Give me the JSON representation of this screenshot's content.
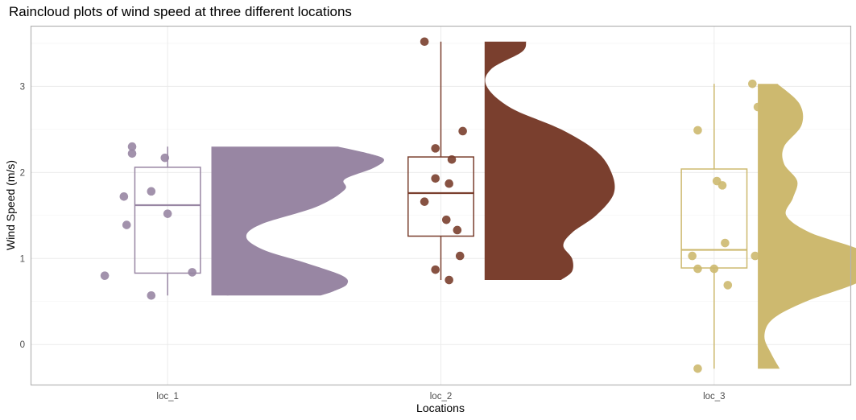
{
  "chart_data": {
    "type": "raincloud",
    "title": "Raincloud plots of wind speed at three different locations",
    "xlabel": "Locations",
    "ylabel": "Wind Speed (m/s)",
    "categories": [
      "loc_1",
      "loc_2",
      "loc_3"
    ],
    "yticks": [
      0,
      1,
      2,
      3
    ],
    "ylim": [
      -0.47,
      3.7
    ],
    "grid": true,
    "series": [
      {
        "category": "loc_1",
        "color": "#9886a3",
        "points": [
          {
            "offset": -0.13,
            "y": 2.3
          },
          {
            "offset": -0.13,
            "y": 2.22
          },
          {
            "offset": -0.01,
            "y": 2.17
          },
          {
            "offset": 0.23,
            "y": 2.03
          },
          {
            "offset": -0.06,
            "y": 1.78
          },
          {
            "offset": -0.16,
            "y": 1.72
          },
          {
            "offset": 0.0,
            "y": 1.52
          },
          {
            "offset": -0.15,
            "y": 1.39
          },
          {
            "offset": 0.09,
            "y": 0.84
          },
          {
            "offset": -0.23,
            "y": 0.8
          },
          {
            "offset": 0.22,
            "y": 0.62
          },
          {
            "offset": -0.06,
            "y": 0.57
          }
        ],
        "box": {
          "min": 0.57,
          "q1": 0.83,
          "median": 1.62,
          "q3": 2.06,
          "max": 2.3
        },
        "density": [
          {
            "y": 0.57,
            "w": 0.5
          },
          {
            "y": 0.62,
            "w": 0.56
          },
          {
            "y": 0.7,
            "w": 0.62
          },
          {
            "y": 0.8,
            "w": 0.6
          },
          {
            "y": 0.95,
            "w": 0.43
          },
          {
            "y": 1.1,
            "w": 0.24
          },
          {
            "y": 1.25,
            "w": 0.16
          },
          {
            "y": 1.4,
            "w": 0.23
          },
          {
            "y": 1.6,
            "w": 0.48
          },
          {
            "y": 1.8,
            "w": 0.61
          },
          {
            "y": 1.92,
            "w": 0.61
          },
          {
            "y": 2.05,
            "w": 0.74
          },
          {
            "y": 2.15,
            "w": 0.79
          },
          {
            "y": 2.22,
            "w": 0.72
          },
          {
            "y": 2.3,
            "w": 0.58
          }
        ]
      },
      {
        "category": "loc_2",
        "color": "#7a3f2e",
        "points": [
          {
            "offset": -0.06,
            "y": 3.52
          },
          {
            "offset": 0.08,
            "y": 2.48
          },
          {
            "offset": -0.02,
            "y": 2.28
          },
          {
            "offset": 0.04,
            "y": 2.15
          },
          {
            "offset": -0.02,
            "y": 1.93
          },
          {
            "offset": 0.03,
            "y": 1.87
          },
          {
            "offset": -0.06,
            "y": 1.66
          },
          {
            "offset": 0.02,
            "y": 1.45
          },
          {
            "offset": 0.06,
            "y": 1.33
          },
          {
            "offset": 0.07,
            "y": 1.03
          },
          {
            "offset": -0.02,
            "y": 0.87
          },
          {
            "offset": 0.03,
            "y": 0.75
          }
        ],
        "box": {
          "min": 0.75,
          "q1": 1.26,
          "median": 1.76,
          "q3": 2.18,
          "max": 3.52
        },
        "density": [
          {
            "y": 0.75,
            "w": 0.35
          },
          {
            "y": 0.85,
            "w": 0.4
          },
          {
            "y": 1.0,
            "w": 0.4
          },
          {
            "y": 1.15,
            "w": 0.36
          },
          {
            "y": 1.3,
            "w": 0.4
          },
          {
            "y": 1.5,
            "w": 0.51
          },
          {
            "y": 1.75,
            "w": 0.59
          },
          {
            "y": 2.0,
            "w": 0.58
          },
          {
            "y": 2.25,
            "w": 0.51
          },
          {
            "y": 2.5,
            "w": 0.35
          },
          {
            "y": 2.75,
            "w": 0.12
          },
          {
            "y": 3.0,
            "w": 0.01
          },
          {
            "y": 3.2,
            "w": 0.03
          },
          {
            "y": 3.4,
            "w": 0.17
          },
          {
            "y": 3.52,
            "w": 0.19
          }
        ]
      },
      {
        "category": "loc_3",
        "color": "#cdb96f",
        "points": [
          {
            "offset": 0.14,
            "y": 3.03
          },
          {
            "offset": 0.16,
            "y": 2.76
          },
          {
            "offset": -0.06,
            "y": 2.49
          },
          {
            "offset": 0.01,
            "y": 1.9
          },
          {
            "offset": 0.03,
            "y": 1.85
          },
          {
            "offset": 0.04,
            "y": 1.18
          },
          {
            "offset": -0.08,
            "y": 1.03
          },
          {
            "offset": 0.15,
            "y": 1.03
          },
          {
            "offset": -0.06,
            "y": 0.88
          },
          {
            "offset": 0.0,
            "y": 0.88
          },
          {
            "offset": 0.05,
            "y": 0.69
          },
          {
            "offset": -0.06,
            "y": -0.28
          }
        ],
        "box": {
          "min": -0.28,
          "q1": 0.89,
          "median": 1.1,
          "q3": 2.04,
          "max": 3.03
        },
        "density": [
          {
            "y": -0.28,
            "w": 0.1
          },
          {
            "y": -0.1,
            "w": 0.06
          },
          {
            "y": 0.1,
            "w": 0.03
          },
          {
            "y": 0.3,
            "w": 0.07
          },
          {
            "y": 0.5,
            "w": 0.22
          },
          {
            "y": 0.7,
            "w": 0.44
          },
          {
            "y": 0.9,
            "w": 0.59
          },
          {
            "y": 1.1,
            "w": 0.47
          },
          {
            "y": 1.3,
            "w": 0.24
          },
          {
            "y": 1.5,
            "w": 0.13
          },
          {
            "y": 1.7,
            "w": 0.16
          },
          {
            "y": 1.9,
            "w": 0.18
          },
          {
            "y": 2.1,
            "w": 0.12
          },
          {
            "y": 2.3,
            "w": 0.12
          },
          {
            "y": 2.55,
            "w": 0.2
          },
          {
            "y": 2.8,
            "w": 0.19
          },
          {
            "y": 3.03,
            "w": 0.09
          }
        ]
      }
    ]
  }
}
